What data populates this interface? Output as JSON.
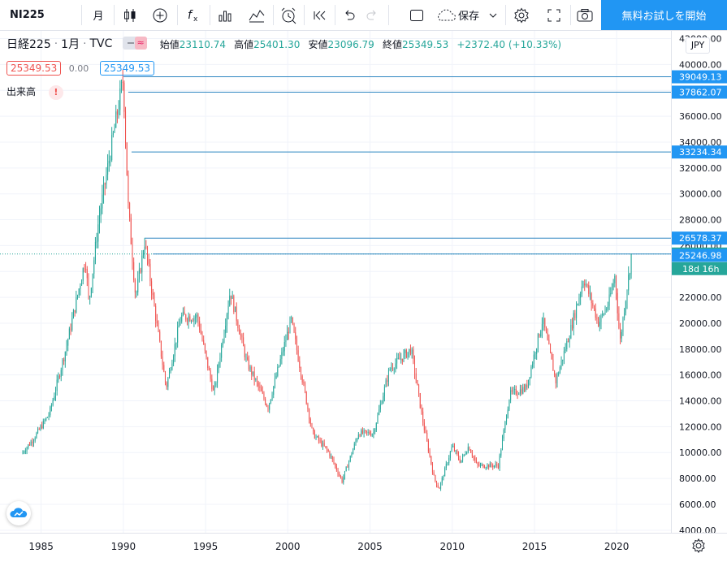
{
  "toolbar": {
    "symbol": "NI225",
    "interval": "月",
    "save_label": "保存",
    "trial_label": "無料お試しを開始"
  },
  "legend": {
    "title": "日経225",
    "interval": "1月",
    "source": "TVC",
    "open_label": "始値",
    "open": "23110.74",
    "high_label": "高値",
    "high": "25401.30",
    "low_label": "安値",
    "low": "23096.79",
    "close_label": "終値",
    "close": "25349.53",
    "change": "+2372.40 (+10.33%)",
    "bid": "25349.53",
    "spread": "0.00",
    "ask": "25349.53",
    "volume_label": "出来高"
  },
  "currency": "JPY",
  "countdown": "18d 16h",
  "colors": {
    "up": "#26a69a",
    "down": "#ef5350",
    "line": "#2196f3",
    "accent": "#2196f3"
  },
  "chart_data": {
    "type": "candlestick",
    "title": "日経225",
    "interval": "1月",
    "x_range": [
      1982.5,
      2023.3
    ],
    "y_range": [
      3800,
      42600
    ],
    "price_ticks": [
      4000,
      6000,
      8000,
      10000,
      12000,
      14000,
      16000,
      18000,
      20000,
      22000,
      24000,
      26000,
      28000,
      30000,
      32000,
      34000,
      36000,
      38000,
      40000,
      42000
    ],
    "price_tick_labels": [
      "4000.00",
      "6000.00",
      "8000.00",
      "10000.00",
      "12000.00",
      "14000.00",
      "16000.00",
      "18000.00",
      "20000.00",
      "22000.00",
      "24000.00",
      "26000.00",
      "28000.00",
      "30000.00",
      "32000.00",
      "34000.00",
      "36000.00",
      "38000.00",
      "40000.00",
      "42000.00"
    ],
    "year_ticks": [
      1985,
      1990,
      1995,
      2000,
      2005,
      2010,
      2015,
      2020
    ],
    "horizontal_lines": [
      {
        "value": 39049.13,
        "label": "39049.13",
        "from_year": 1990.0
      },
      {
        "value": 37862.07,
        "label": "37862.07",
        "from_year": 1990.3
      },
      {
        "value": 33234.34,
        "label": "33234.34",
        "from_year": 1990.5
      },
      {
        "value": 26578.37,
        "label": "26578.37",
        "from_year": 1991.3
      },
      {
        "value": 25349.53,
        "label": "25349.53",
        "from_year": 1991.8
      },
      {
        "value": 25246.98,
        "label": "25246.98",
        "from_year": null
      }
    ],
    "last_price": 25349.53,
    "anchors": [
      [
        1983.8,
        9900
      ],
      [
        1984.5,
        11000
      ],
      [
        1985.5,
        13000
      ],
      [
        1986.5,
        18000
      ],
      [
        1987.7,
        25000
      ],
      [
        1987.9,
        21500
      ],
      [
        1988.5,
        28000
      ],
      [
        1989.99,
        38900
      ],
      [
        1990.3,
        29000
      ],
      [
        1990.75,
        22000
      ],
      [
        1991.3,
        26300
      ],
      [
        1992.6,
        15000
      ],
      [
        1993.5,
        20500
      ],
      [
        1994.5,
        20500
      ],
      [
        1995.5,
        14500
      ],
      [
        1996.5,
        22500
      ],
      [
        1997.5,
        17000
      ],
      [
        1998.8,
        13500
      ],
      [
        2000.2,
        20300
      ],
      [
        2001.5,
        11500
      ],
      [
        2002.5,
        10000
      ],
      [
        2003.3,
        7800
      ],
      [
        2004.3,
        11500
      ],
      [
        2005.2,
        11500
      ],
      [
        2006.2,
        16500
      ],
      [
        2007.5,
        18000
      ],
      [
        2008.2,
        12500
      ],
      [
        2008.9,
        8000
      ],
      [
        2009.2,
        7200
      ],
      [
        2010.0,
        10500
      ],
      [
        2010.5,
        9300
      ],
      [
        2011.0,
        10500
      ],
      [
        2011.5,
        9000
      ],
      [
        2012.8,
        9000
      ],
      [
        2013.5,
        14500
      ],
      [
        2014.5,
        15000
      ],
      [
        2015.5,
        20300
      ],
      [
        2016.3,
        15500
      ],
      [
        2017.2,
        19500
      ],
      [
        2018.0,
        23500
      ],
      [
        2018.9,
        20000
      ],
      [
        2019.5,
        21500
      ],
      [
        2019.9,
        23700
      ],
      [
        2020.2,
        18500
      ],
      [
        2020.6,
        22500
      ],
      [
        2020.92,
        25349
      ]
    ]
  }
}
